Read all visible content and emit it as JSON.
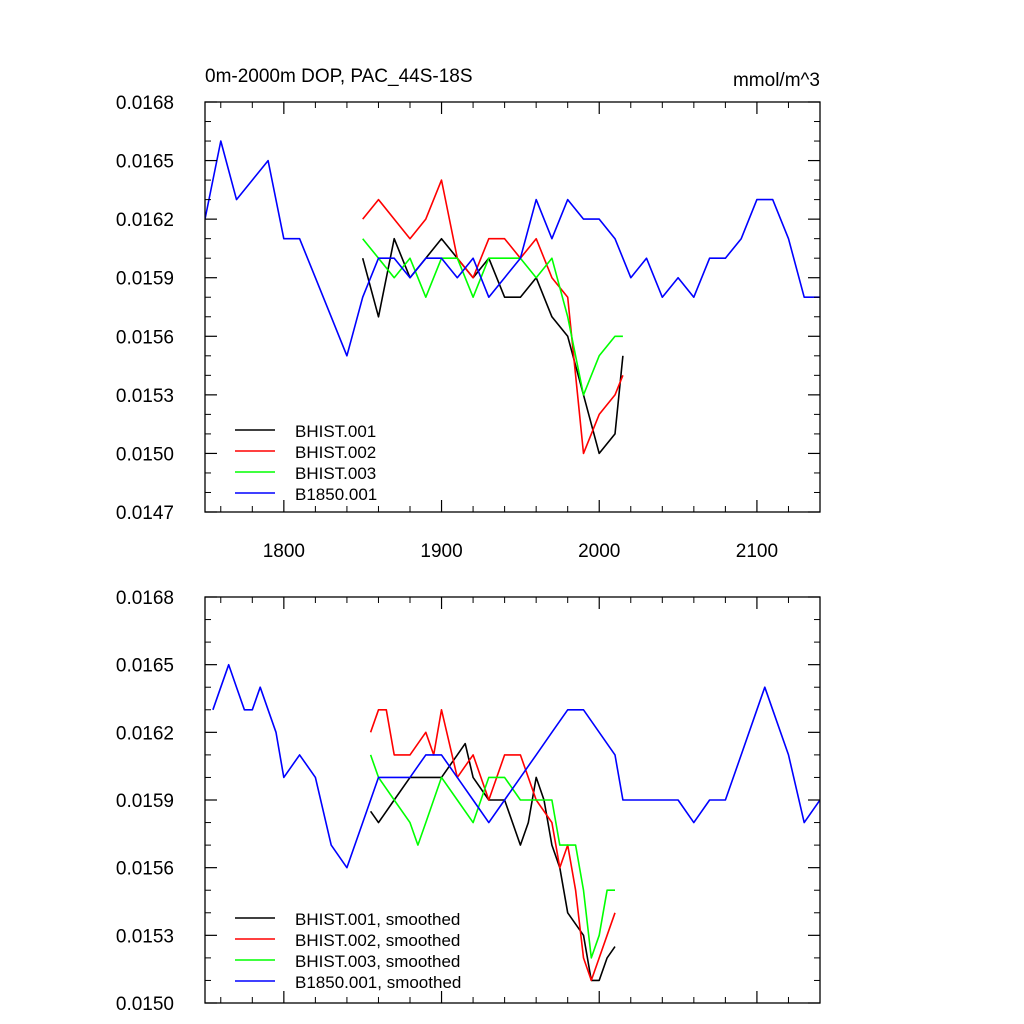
{
  "chart_data": [
    {
      "type": "line",
      "title": "0m-2000m DOP, PAC_44S-18S",
      "units": "mmol/m^3",
      "xlim": [
        1750,
        2140
      ],
      "ylim": [
        0.0147,
        0.0168
      ],
      "xticks": [
        1800,
        1900,
        2000,
        2100
      ],
      "xtick_labels": [
        "1800",
        "1900",
        "2000",
        "2100"
      ],
      "yticks": [
        0.0147,
        0.015,
        0.0153,
        0.0156,
        0.0159,
        0.0162,
        0.0165,
        0.0168
      ],
      "ytick_labels": [
        "0.0147",
        "0.0150",
        "0.0153",
        "0.0156",
        "0.0159",
        "0.0162",
        "0.0165",
        "0.0168"
      ],
      "legend_position": "bottom-left",
      "series": [
        {
          "name": "BHIST.001",
          "color": "#000000",
          "x": [
            1850,
            1860,
            1870,
            1880,
            1890,
            1900,
            1910,
            1920,
            1930,
            1940,
            1950,
            1960,
            1970,
            1980,
            1990,
            2000,
            2010,
            2015
          ],
          "values": [
            0.016,
            0.0157,
            0.0161,
            0.0159,
            0.016,
            0.0161,
            0.016,
            0.0159,
            0.016,
            0.0158,
            0.0158,
            0.0159,
            0.0157,
            0.0156,
            0.0153,
            0.015,
            0.0151,
            0.0155
          ]
        },
        {
          "name": "BHIST.002",
          "color": "#ff0000",
          "x": [
            1850,
            1860,
            1870,
            1880,
            1890,
            1900,
            1910,
            1920,
            1930,
            1940,
            1950,
            1960,
            1970,
            1980,
            1990,
            2000,
            2010,
            2015
          ],
          "values": [
            0.0162,
            0.0163,
            0.0162,
            0.0161,
            0.0162,
            0.0164,
            0.016,
            0.0159,
            0.0161,
            0.0161,
            0.016,
            0.0161,
            0.0159,
            0.0158,
            0.015,
            0.0152,
            0.0153,
            0.0154
          ]
        },
        {
          "name": "BHIST.003",
          "color": "#00ff00",
          "x": [
            1850,
            1860,
            1870,
            1880,
            1890,
            1900,
            1910,
            1920,
            1930,
            1940,
            1950,
            1960,
            1970,
            1980,
            1990,
            2000,
            2010,
            2015
          ],
          "values": [
            0.0161,
            0.016,
            0.0159,
            0.016,
            0.0158,
            0.016,
            0.016,
            0.0158,
            0.016,
            0.016,
            0.016,
            0.0159,
            0.016,
            0.0157,
            0.0153,
            0.0155,
            0.0156,
            0.0156
          ]
        },
        {
          "name": "B1850.001",
          "color": "#0000ff",
          "x": [
            1750,
            1760,
            1770,
            1780,
            1790,
            1800,
            1810,
            1820,
            1830,
            1840,
            1850,
            1860,
            1870,
            1880,
            1890,
            1900,
            1910,
            1920,
            1930,
            1940,
            1950,
            1960,
            1970,
            1980,
            1990,
            2000,
            2010,
            2020,
            2030,
            2040,
            2050,
            2060,
            2070,
            2080,
            2090,
            2100,
            2110,
            2120,
            2130,
            2140
          ],
          "values": [
            0.0162,
            0.0166,
            0.0163,
            0.0164,
            0.0165,
            0.0161,
            0.0161,
            0.0159,
            0.0157,
            0.0155,
            0.0158,
            0.016,
            0.016,
            0.0159,
            0.016,
            0.016,
            0.0159,
            0.016,
            0.0158,
            0.0159,
            0.016,
            0.0163,
            0.0161,
            0.0163,
            0.0162,
            0.0162,
            0.0161,
            0.0159,
            0.016,
            0.0158,
            0.0159,
            0.0158,
            0.016,
            0.016,
            0.0161,
            0.0163,
            0.0163,
            0.0161,
            0.0158,
            0.0158
          ]
        }
      ]
    },
    {
      "type": "line",
      "title": "",
      "xlim": [
        1750,
        2140
      ],
      "ylim": [
        0.015,
        0.0168
      ],
      "xticks": [
        1800,
        1900,
        2000,
        2100
      ],
      "xtick_labels": [
        "",
        "",
        "",
        ""
      ],
      "yticks": [
        0.015,
        0.0153,
        0.0156,
        0.0159,
        0.0162,
        0.0165,
        0.0168
      ],
      "ytick_labels": [
        "0.0150",
        "0.0153",
        "0.0156",
        "0.0159",
        "0.0162",
        "0.0165",
        "0.0168"
      ],
      "legend_position": "bottom-left",
      "series": [
        {
          "name": "BHIST.001, smoothed",
          "color": "#000000",
          "x": [
            1855,
            1860,
            1870,
            1880,
            1890,
            1900,
            1910,
            1915,
            1920,
            1930,
            1940,
            1950,
            1955,
            1960,
            1965,
            1970,
            1975,
            1980,
            1990,
            1995,
            2000,
            2005,
            2010
          ],
          "values": [
            0.01585,
            0.0158,
            0.0159,
            0.016,
            0.016,
            0.016,
            0.0161,
            0.01615,
            0.016,
            0.0159,
            0.0159,
            0.0157,
            0.0158,
            0.016,
            0.0159,
            0.0157,
            0.0156,
            0.0154,
            0.0153,
            0.0151,
            0.0151,
            0.0152,
            0.01525
          ]
        },
        {
          "name": "BHIST.002, smoothed",
          "color": "#ff0000",
          "x": [
            1855,
            1860,
            1865,
            1870,
            1880,
            1890,
            1895,
            1900,
            1910,
            1920,
            1930,
            1940,
            1950,
            1960,
            1970,
            1975,
            1980,
            1985,
            1990,
            1995,
            2000,
            2005,
            2010
          ],
          "values": [
            0.0162,
            0.0163,
            0.0163,
            0.0161,
            0.0161,
            0.0162,
            0.0161,
            0.0163,
            0.016,
            0.0161,
            0.0159,
            0.0161,
            0.0161,
            0.0159,
            0.0158,
            0.0156,
            0.0157,
            0.0155,
            0.0152,
            0.0151,
            0.0152,
            0.0153,
            0.0154
          ]
        },
        {
          "name": "BHIST.003, smoothed",
          "color": "#00ff00",
          "x": [
            1855,
            1860,
            1870,
            1880,
            1885,
            1890,
            1900,
            1910,
            1920,
            1930,
            1940,
            1950,
            1960,
            1970,
            1975,
            1980,
            1985,
            1990,
            1995,
            2000,
            2005,
            2010
          ],
          "values": [
            0.0161,
            0.016,
            0.0159,
            0.0158,
            0.0157,
            0.0158,
            0.016,
            0.0159,
            0.0158,
            0.016,
            0.016,
            0.0159,
            0.0159,
            0.0159,
            0.0157,
            0.0157,
            0.0157,
            0.0155,
            0.0152,
            0.0153,
            0.0155,
            0.0155
          ]
        },
        {
          "name": "B1850.001, smoothed",
          "color": "#0000ff",
          "x": [
            1755,
            1760,
            1765,
            1770,
            1775,
            1780,
            1785,
            1790,
            1795,
            1800,
            1810,
            1820,
            1830,
            1840,
            1845,
            1850,
            1855,
            1860,
            1870,
            1880,
            1890,
            1900,
            1910,
            1920,
            1930,
            1940,
            1950,
            1960,
            1970,
            1980,
            1990,
            2000,
            2010,
            2015,
            2020,
            2030,
            2040,
            2050,
            2060,
            2070,
            2080,
            2090,
            2100,
            2105,
            2110,
            2120,
            2130,
            2140
          ],
          "values": [
            0.0163,
            0.0164,
            0.0165,
            0.0164,
            0.0163,
            0.0163,
            0.0164,
            0.0163,
            0.0162,
            0.016,
            0.0161,
            0.016,
            0.0157,
            0.0156,
            0.0157,
            0.0158,
            0.0159,
            0.016,
            0.016,
            0.016,
            0.0161,
            0.0161,
            0.016,
            0.0159,
            0.0158,
            0.0159,
            0.016,
            0.0161,
            0.0162,
            0.0163,
            0.0163,
            0.0162,
            0.0161,
            0.0159,
            0.0159,
            0.0159,
            0.0159,
            0.0159,
            0.0158,
            0.0159,
            0.0159,
            0.0161,
            0.0163,
            0.0164,
            0.0163,
            0.0161,
            0.0158,
            0.0159
          ]
        }
      ]
    }
  ]
}
